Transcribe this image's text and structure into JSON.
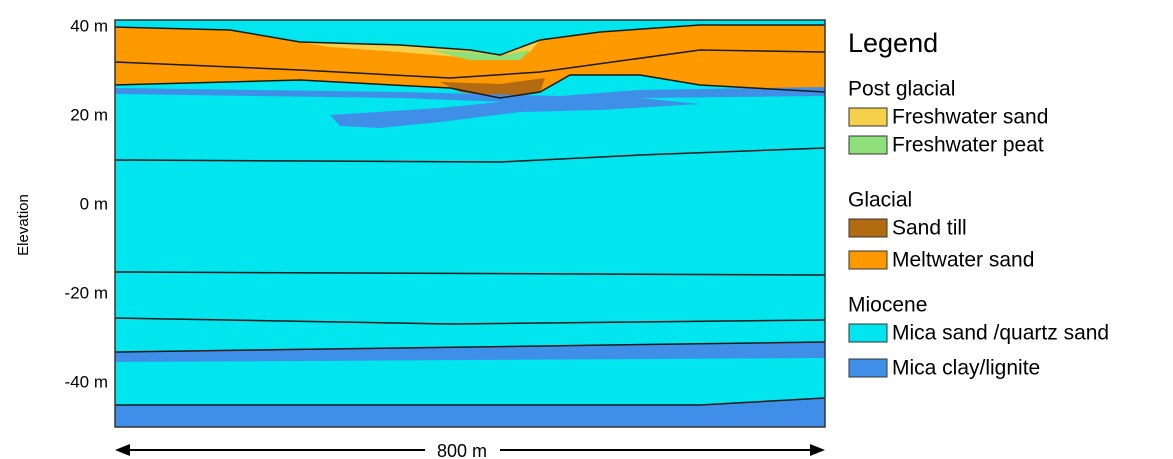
{
  "axis": {
    "label": "Elevation",
    "ticks": [
      "40 m",
      "20 m",
      "0 m",
      "-20 m",
      "-40 m"
    ]
  },
  "scale": {
    "label": "800 m"
  },
  "legend": {
    "title": "Legend",
    "groups": [
      {
        "title": "Post glacial",
        "items": [
          "Freshwater sand",
          "Freshwater peat"
        ]
      },
      {
        "title": "Glacial",
        "items": [
          "Sand till",
          "Meltwater sand"
        ]
      },
      {
        "title": "Miocene",
        "items": [
          "Mica sand /quartz sand",
          "Mica clay/lignite"
        ]
      }
    ]
  }
}
